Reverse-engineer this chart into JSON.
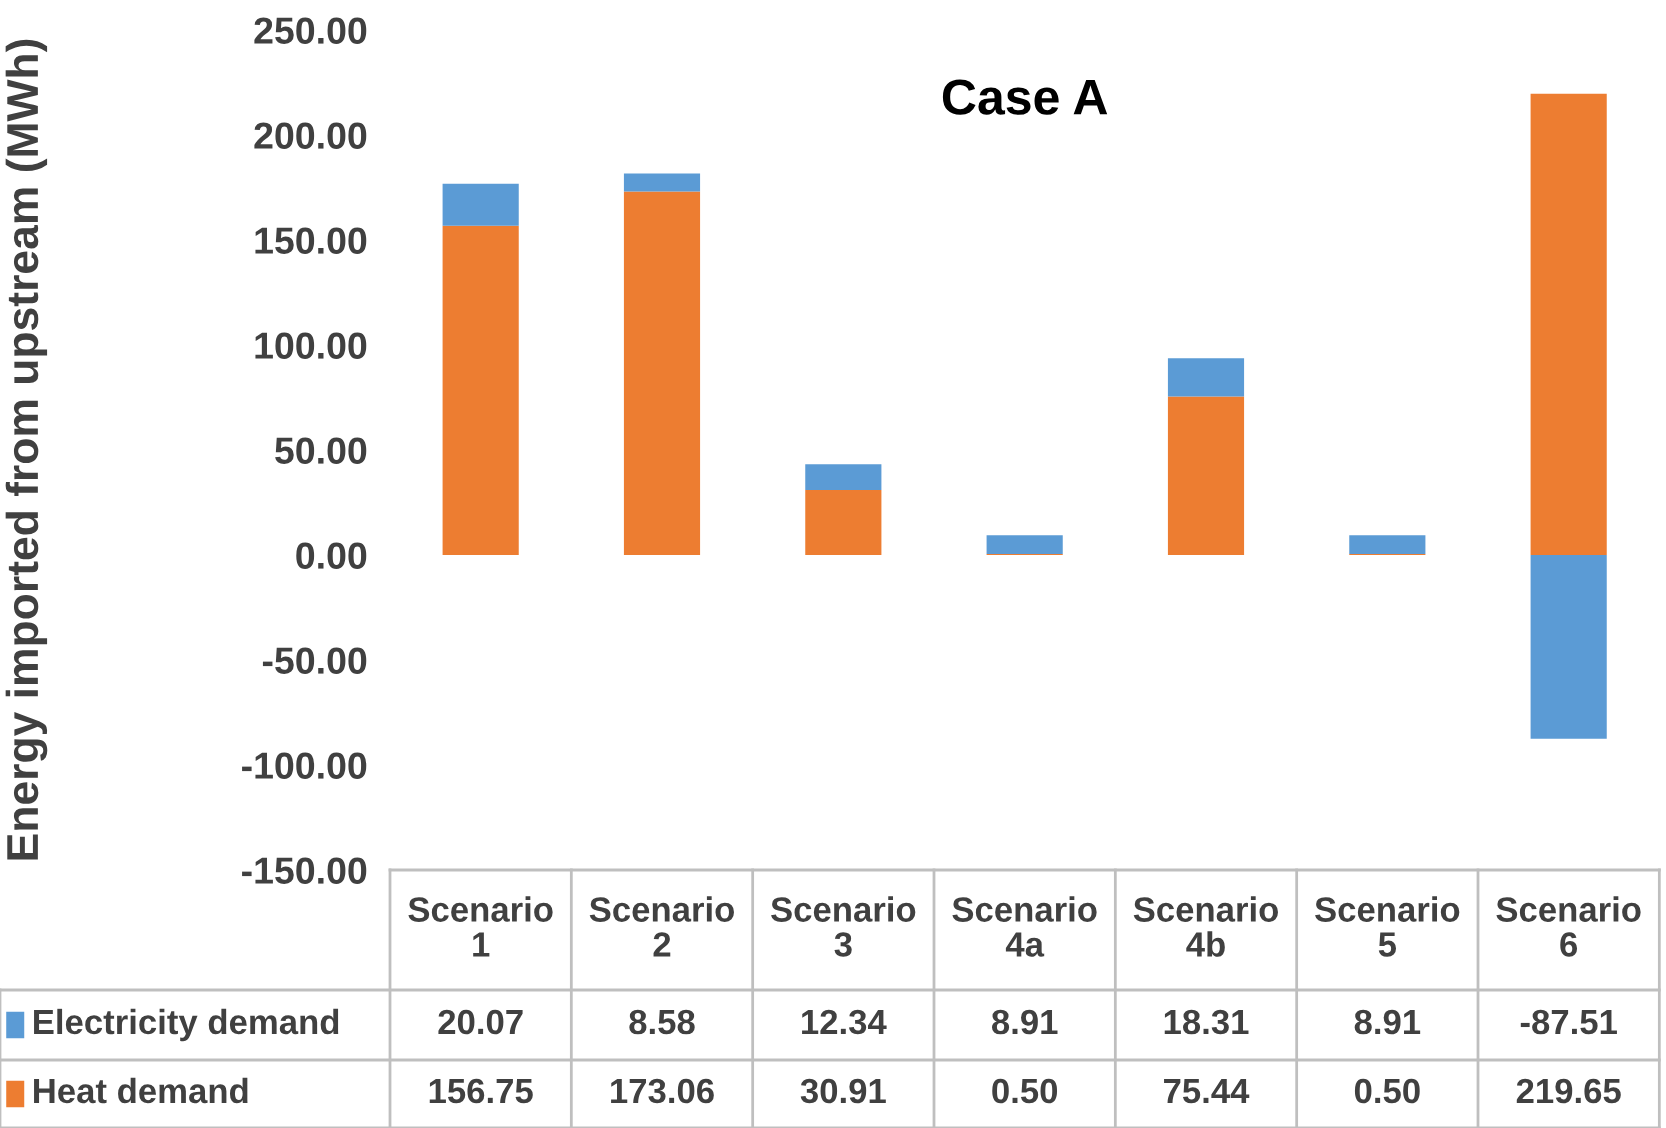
{
  "chart_data": {
    "type": "bar",
    "title": "Case A",
    "ylabel": "Energy imported from upstream (MWh)",
    "categories": [
      "Scenario 1",
      "Scenario 2",
      "Scenario 3",
      "Scenario 4a",
      "Scenario 4b",
      "Scenario 5",
      "Scenario 6"
    ],
    "stacked": true,
    "series": [
      {
        "name": "Heat demand",
        "color": "#ed7d31",
        "values": [
          156.75,
          173.06,
          30.91,
          0.5,
          75.44,
          0.5,
          219.65
        ],
        "value_labels": [
          "156.75",
          "173.06",
          "30.91",
          "0.50",
          "75.44",
          "0.50",
          "219.65"
        ]
      },
      {
        "name": "Electricity demand",
        "color": "#5b9bd5",
        "values": [
          20.07,
          8.58,
          12.34,
          8.91,
          18.31,
          8.91,
          -87.51
        ],
        "value_labels": [
          "20.07",
          "8.58",
          "12.34",
          "8.91",
          "18.31",
          "8.91",
          "-87.51"
        ]
      }
    ],
    "ylim": [
      -150,
      250
    ],
    "yticks": [
      {
        "value": -150,
        "label": "-150.00"
      },
      {
        "value": -100,
        "label": "-100.00"
      },
      {
        "value": -50,
        "label": "-50.00"
      },
      {
        "value": 0,
        "label": "0.00"
      },
      {
        "value": 50,
        "label": "50.00"
      },
      {
        "value": 100,
        "label": "100.00"
      },
      {
        "value": 150,
        "label": "150.00"
      },
      {
        "value": 200,
        "label": "200.00"
      },
      {
        "value": 250,
        "label": "250.00"
      }
    ],
    "grid": false,
    "legend": "bottom"
  }
}
